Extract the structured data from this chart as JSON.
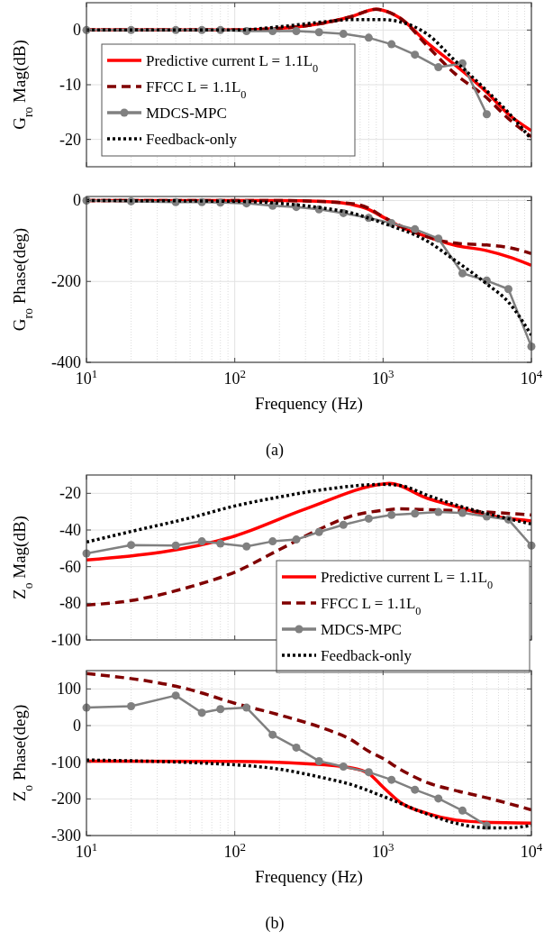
{
  "chart_data": [
    {
      "type": "line",
      "ylabel": "G$_{ro}$  Mag(dB)",
      "xlim": [
        10,
        10000
      ],
      "ylim": [
        -25,
        5
      ],
      "log": "x",
      "grid": true,
      "legend": "left",
      "tick_labels": "y",
      "xticks": [
        {
          "value": 10,
          "label": null
        },
        {
          "value": 100,
          "label": null
        },
        {
          "value": 1000,
          "label": null
        },
        {
          "value": 10000,
          "label": null
        }
      ],
      "yticks": [
        -20,
        -10,
        0
      ],
      "series": [
        {
          "name": "Predictive current L = 1.1L$_{0}$",
          "color": "#ff0000",
          "line_style": "solid",
          "x": [
            10,
            50,
            100,
            200,
            400,
            600,
            900,
            1000,
            1300,
            2000,
            3000,
            5000,
            7000,
            10000
          ],
          "values": [
            0,
            0,
            0,
            0.3,
            1.3,
            2.4,
            3.8,
            3.6,
            2.2,
            -2.4,
            -6.2,
            -11.4,
            -15.4,
            -18.4
          ]
        },
        {
          "name": "FFCC L = 1.1L$_{0}$",
          "color": "#800000",
          "line_style": "dashed",
          "x": [
            10,
            50,
            100,
            200,
            400,
            600,
            900,
            1000,
            1300,
            2000,
            3000,
            5000,
            7000,
            10000
          ],
          "values": [
            0,
            0,
            0,
            0.3,
            1.3,
            2.4,
            3.8,
            3.6,
            2.2,
            -3,
            -7.8,
            -12.4,
            -16.2,
            -19.5
          ]
        },
        {
          "name": "MDCS-MPC",
          "color": "#808080",
          "line_style": "solid",
          "marker": "circle",
          "x": [
            10,
            20,
            40,
            60,
            80,
            120,
            180,
            260,
            370,
            540,
            800,
            1140,
            1640,
            2360,
            3430,
            5000
          ],
          "values": [
            0,
            0,
            0,
            0,
            0,
            -0.2,
            -0.2,
            -0.2,
            -0.4,
            -0.7,
            -1.4,
            -2.6,
            -4.5,
            -6.8,
            -6.1,
            -15.4
          ]
        },
        {
          "name": "Feedback-only",
          "color": "#000000",
          "line_style": "dotted",
          "x": [
            10,
            50,
            100,
            200,
            400,
            600,
            1000,
            1300,
            2000,
            3000,
            5000,
            7000,
            10000
          ],
          "values": [
            0,
            0,
            0,
            0.6,
            1.5,
            1.9,
            1.9,
            1.5,
            -0.8,
            -5.4,
            -11.1,
            -15.1,
            -20
          ]
        }
      ]
    },
    {
      "type": "line",
      "ylabel": "G$_{ro}$  Phase(deg)",
      "xlabel": "Frequency (Hz)",
      "annotations": [
        "(a)"
      ],
      "xlim": [
        10,
        10000
      ],
      "ylim": [
        -400,
        10
      ],
      "log": "x",
      "grid": true,
      "xticks": [
        {
          "value": 10,
          "label": "10$^{1}$"
        },
        {
          "value": 100,
          "label": "10$^{2}$"
        },
        {
          "value": 1000,
          "label": "10$^{3}$"
        },
        {
          "value": 10000,
          "label": "10$^{4}$"
        }
      ],
      "yticks": [
        -400,
        -200,
        0
      ],
      "series": [
        {
          "color": "#ff0000",
          "line_style": "solid",
          "x": [
            10,
            100,
            200,
            400,
            600,
            800,
            1000,
            1300,
            2000,
            3000,
            5000,
            7000,
            10000
          ],
          "values": [
            0,
            0,
            0,
            -2,
            -9,
            -22,
            -41,
            -64,
            -90,
            -110,
            -124,
            -139,
            -160
          ]
        },
        {
          "color": "#800000",
          "line_style": "dashed",
          "x": [
            10,
            100,
            200,
            600,
            800,
            1000,
            1300,
            2000,
            3000,
            5000,
            7000,
            10000
          ],
          "values": [
            0,
            0,
            0,
            -7,
            -19,
            -40,
            -62,
            -90,
            -105,
            -110,
            -116,
            -131
          ]
        },
        {
          "color": "#808080",
          "line_style": "solid",
          "marker": "circle",
          "x": [
            10,
            20,
            40,
            60,
            80,
            120,
            180,
            260,
            370,
            540,
            800,
            1140,
            1640,
            2360,
            3430,
            5000,
            7000,
            10000
          ],
          "values": [
            0,
            -2,
            -4,
            -4,
            -5,
            -7,
            -13,
            -16,
            -22,
            -31,
            -43,
            -56,
            -71,
            -94,
            -180,
            -198,
            -219,
            -361
          ]
        },
        {
          "color": "#000000",
          "line_style": "dotted",
          "x": [
            10,
            100,
            200,
            400,
            600,
            1000,
            2000,
            3000,
            5000,
            7000,
            10000
          ],
          "values": [
            0,
            -2,
            -7,
            -19,
            -30,
            -56,
            -101,
            -146,
            -206,
            -251,
            -333
          ]
        }
      ]
    },
    {
      "type": "line",
      "ylabel": "Z$_{o}$  Mag(dB)",
      "xlim": [
        10,
        10000
      ],
      "ylim": [
        -100,
        -10
      ],
      "log": "x",
      "grid": true,
      "legend": "bottom right",
      "tick_labels": "y",
      "xticks": [
        {
          "value": 10,
          "label": null
        },
        {
          "value": 100,
          "label": null
        },
        {
          "value": 1000,
          "label": null
        },
        {
          "value": 10000,
          "label": null
        }
      ],
      "yticks": [
        -100,
        -80,
        -60,
        -40,
        -20
      ],
      "series": [
        {
          "name": "Predictive current L = 1.1L$_{0}$",
          "color": "#ff0000",
          "line_style": "solid",
          "x": [
            10,
            100,
            300,
            1000,
            1100,
            2000,
            3000,
            5000,
            10000
          ],
          "values": [
            -56.4,
            -43.3,
            -28.5,
            -14.9,
            -14.6,
            -22.8,
            -26.9,
            -31.8,
            -35.1
          ]
        },
        {
          "name": "FFCC L = 1.1L$_{0}$",
          "color": "#800000",
          "line_style": "dashed",
          "x": [
            10,
            20,
            50,
            100,
            200,
            400,
            600,
            1000,
            1300,
            2000,
            5000,
            10000
          ],
          "values": [
            -81,
            -78.5,
            -71,
            -63,
            -50.7,
            -38.4,
            -32.6,
            -29.3,
            -28.5,
            -28.9,
            -30.2,
            -31.8
          ]
        },
        {
          "name": "MDCS-MPC",
          "color": "#808080",
          "line_style": "solid",
          "marker": "circle",
          "x": [
            10,
            20,
            40,
            60,
            80,
            120,
            180,
            260,
            370,
            540,
            800,
            1140,
            1640,
            2360,
            3430,
            5000,
            7000,
            10000
          ],
          "values": [
            -52.8,
            -48.2,
            -48.5,
            -46.2,
            -47.4,
            -49,
            -46.2,
            -45.2,
            -41.1,
            -37.2,
            -33.8,
            -31.8,
            -31,
            -30.2,
            -30.7,
            -32.6,
            -34.3,
            -48.5
          ]
        },
        {
          "name": "Feedback-only",
          "color": "#000000",
          "line_style": "dotted",
          "x": [
            10,
            20,
            50,
            100,
            200,
            400,
            1000,
            1300,
            2000,
            3000,
            5000,
            10000
          ],
          "values": [
            -46.6,
            -40.8,
            -33.4,
            -26.9,
            -22,
            -17.9,
            -15.1,
            -15.7,
            -21.1,
            -26,
            -31,
            -36.7
          ]
        }
      ]
    },
    {
      "type": "line",
      "ylabel": "Z$_{o}$  Phase(deg)",
      "xlabel": "Frequency (Hz)",
      "annotations": [
        "(b)"
      ],
      "xlim": [
        10,
        10000
      ],
      "ylim": [
        -300,
        150
      ],
      "log": "x",
      "grid": true,
      "xticks": [
        {
          "value": 10,
          "label": "10$^{1}$"
        },
        {
          "value": 100,
          "label": "10$^{2}$"
        },
        {
          "value": 1000,
          "label": "10$^{3}$"
        },
        {
          "value": 10000,
          "label": "10$^{4}$"
        }
      ],
      "yticks": [
        -300,
        -200,
        -100,
        0,
        100
      ],
      "series": [
        {
          "color": "#ff0000",
          "line_style": "solid",
          "x": [
            10,
            100,
            300,
            600,
            800,
            1000,
            1300,
            2000,
            3000,
            5000,
            10000
          ],
          "values": [
            -97,
            -98,
            -104,
            -115,
            -131,
            -168,
            -209,
            -240,
            -257,
            -264,
            -266
          ]
        },
        {
          "color": "#800000",
          "line_style": "dashed",
          "x": [
            10,
            50,
            100,
            200,
            400,
            600,
            800,
            1000,
            1300,
            2000,
            3000,
            5000,
            10000
          ],
          "values": [
            142,
            98,
            61,
            29,
            -8,
            -37,
            -70,
            -90,
            -119,
            -156,
            -176,
            -197,
            -230
          ]
        },
        {
          "color": "#808080",
          "line_style": "solid",
          "marker": "circle",
          "x": [
            10,
            20,
            40,
            60,
            80,
            120,
            180,
            260,
            370,
            540,
            800,
            1140,
            1640,
            2360,
            3430,
            5000
          ],
          "values": [
            49,
            53,
            82,
            35,
            45,
            49,
            -25,
            -60,
            -97,
            -112,
            -127,
            -148,
            -175,
            -199,
            -232,
            -273
          ]
        },
        {
          "color": "#000000",
          "line_style": "dotted",
          "x": [
            10,
            100,
            200,
            400,
            600,
            1000,
            2000,
            3000,
            5000,
            7000,
            10000
          ],
          "values": [
            -94,
            -107,
            -119,
            -143,
            -160,
            -193,
            -242,
            -265,
            -279,
            -279,
            -272
          ]
        }
      ]
    }
  ]
}
